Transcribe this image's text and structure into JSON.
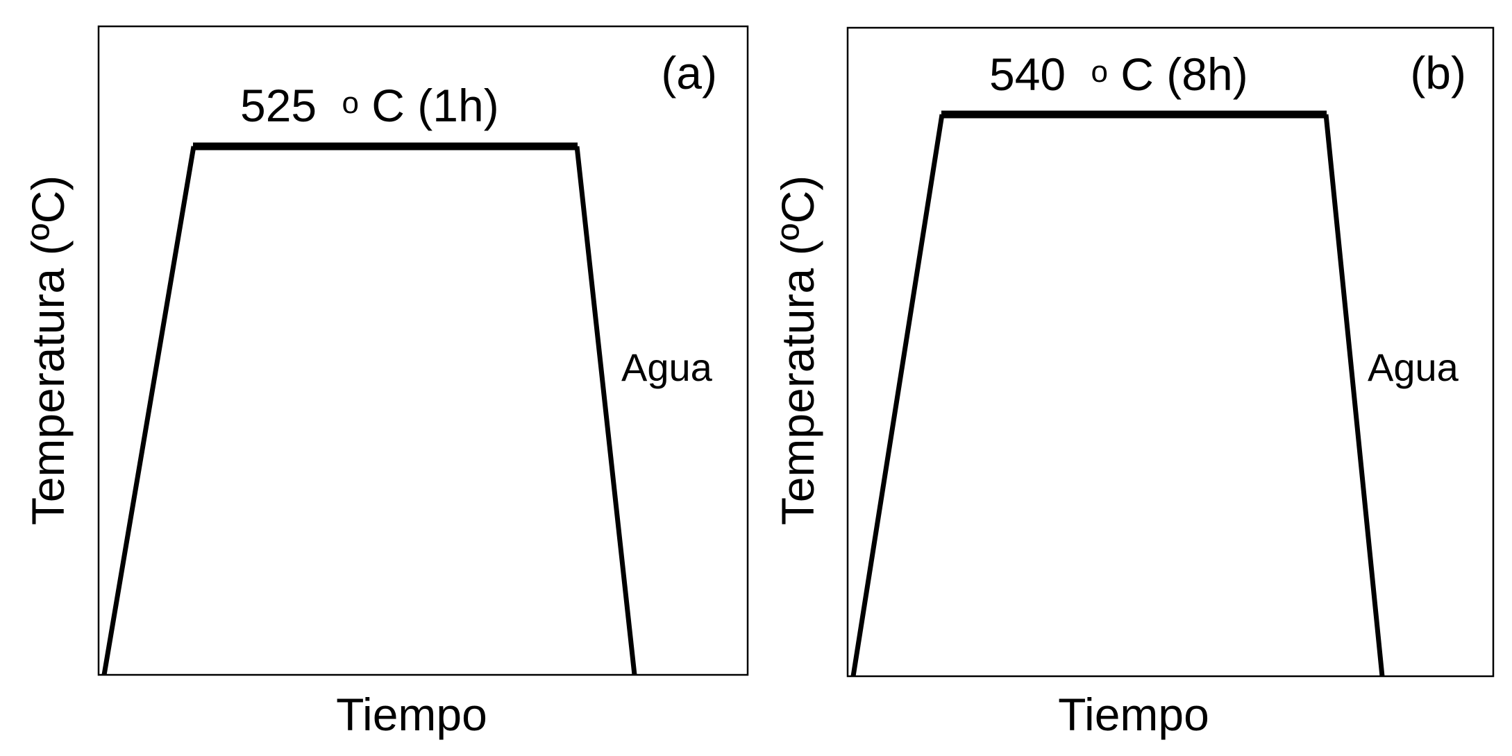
{
  "panels": [
    {
      "id": "a",
      "letter": "(a)",
      "temperature_value": "525",
      "temperature_degree": "o",
      "temperature_unit_hold": "C (1h)",
      "quench_label": "Agua",
      "xlabel": "Tiempo",
      "ylabel": "Temperatura (ºC)"
    },
    {
      "id": "b",
      "letter": "(b)",
      "temperature_value": "540",
      "temperature_degree": "o",
      "temperature_unit_hold": "C (8h)",
      "quench_label": "Agua",
      "xlabel": "Tiempo",
      "ylabel": "Temperatura (ºC)"
    }
  ],
  "colors": {
    "line": "#000000",
    "background": "#ffffff"
  }
}
